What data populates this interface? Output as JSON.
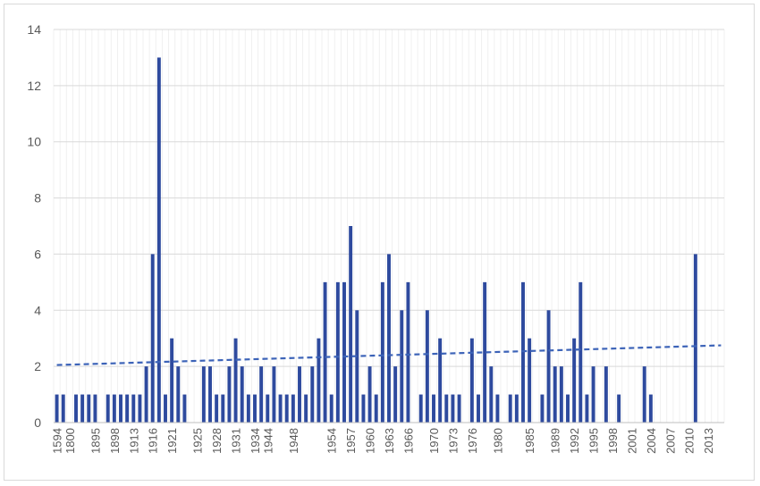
{
  "chart_data": {
    "type": "bar",
    "title": "",
    "xlabel": "",
    "ylabel": "",
    "ylim": [
      0,
      14
    ],
    "yticks": [
      0,
      2,
      4,
      6,
      8,
      10,
      12,
      14
    ],
    "grid": "horizontal",
    "bar_color": "#2e4a9e",
    "trendline_color": "#3c63b8",
    "trendline": {
      "type": "linear",
      "style": "dashed",
      "start": 2.05,
      "end": 2.75
    },
    "categories": [
      "1594",
      "1598",
      "1800",
      "1801",
      "1802",
      "1803",
      "1895",
      "1896",
      "1897",
      "1898",
      "1899",
      "1900",
      "1913",
      "1914",
      "1915",
      "1916",
      "1917",
      "1918",
      "1921",
      "1922",
      "1923",
      "1924",
      "1925",
      "1926",
      "1927",
      "1928",
      "1929",
      "1930",
      "1931",
      "1932",
      "1933",
      "1934",
      "1935",
      "1944",
      "1945",
      "1946",
      "1947",
      "1948",
      "1949",
      "1950",
      "1951",
      "1952",
      "1953",
      "1954",
      "1955",
      "1956",
      "1957",
      "1958",
      "1959",
      "1960",
      "1961",
      "1962",
      "1963",
      "1964",
      "1965",
      "1966",
      "1967",
      "1968",
      "1969",
      "1970",
      "1971",
      "1972",
      "1973",
      "1974",
      "1975",
      "1976",
      "1977",
      "1978",
      "1979",
      "1980",
      "1981",
      "1982",
      "1983",
      "1984",
      "1985",
      "1986",
      "1987",
      "1988",
      "1989",
      "1990",
      "1991",
      "1992",
      "1993",
      "1994",
      "1995",
      "1996",
      "1997",
      "1998",
      "1999",
      "2000",
      "2001",
      "2002",
      "2003",
      "2004",
      "2005",
      "2006",
      "2007",
      "2008",
      "2009",
      "2010",
      "2011",
      "2012",
      "2013",
      "2014",
      "2015"
    ],
    "values": [
      1,
      1,
      0,
      1,
      1,
      1,
      1,
      0,
      1,
      1,
      1,
      1,
      1,
      1,
      2,
      6,
      13,
      1,
      3,
      2,
      1,
      0,
      0,
      2,
      2,
      1,
      1,
      2,
      3,
      2,
      1,
      1,
      2,
      1,
      2,
      1,
      1,
      1,
      2,
      1,
      2,
      3,
      5,
      1,
      5,
      5,
      7,
      4,
      1,
      2,
      1,
      5,
      6,
      2,
      4,
      5,
      0,
      1,
      4,
      1,
      3,
      1,
      1,
      1,
      0,
      3,
      1,
      5,
      2,
      1,
      0,
      1,
      1,
      5,
      3,
      0,
      1,
      4,
      2,
      2,
      1,
      3,
      5,
      1,
      2,
      0,
      2,
      0,
      1,
      0,
      0,
      0,
      2,
      1,
      0,
      0,
      0,
      0,
      0,
      0,
      6,
      0,
      0,
      0,
      0
    ],
    "visible_tick_labels": [
      "1594",
      "1800",
      "1895",
      "1898",
      "1913",
      "1916",
      "1921",
      "1925",
      "1928",
      "1931",
      "1934",
      "1944",
      "1948",
      "1954",
      "1957",
      "1960",
      "1963",
      "1966",
      "1970",
      "1973",
      "1976",
      "1980",
      "1985",
      "1989",
      "1992",
      "1995",
      "1998",
      "2001",
      "2004",
      "2007",
      "2010",
      "2013"
    ]
  }
}
